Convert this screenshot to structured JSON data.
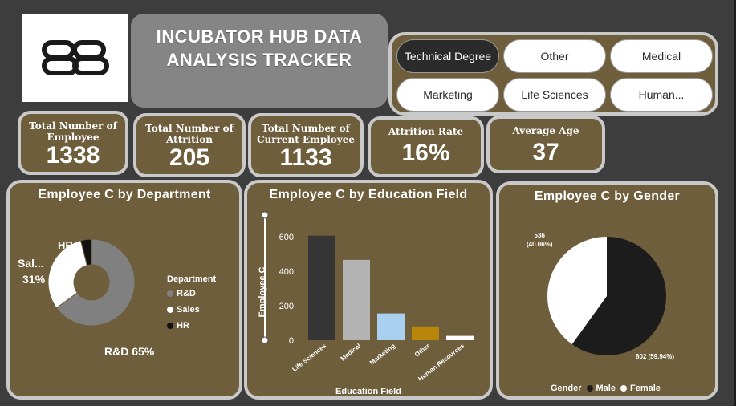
{
  "header": {
    "title_line1": "INCUBATOR HUB DATA",
    "title_line2": "ANALYSIS TRACKER",
    "logo_icon": "bb-logo-icon"
  },
  "slicer": {
    "options": [
      {
        "label": "Technical Degree",
        "selected": true
      },
      {
        "label": "Other",
        "selected": false
      },
      {
        "label": "Medical",
        "selected": false
      },
      {
        "label": "Marketing",
        "selected": false
      },
      {
        "label": "Life Sciences",
        "selected": false
      },
      {
        "label": "Human...",
        "selected": false
      }
    ]
  },
  "kpis": {
    "total_employee": {
      "label": "Total Number of Employee",
      "value": "1338"
    },
    "total_attrition": {
      "label": "Total Number of Attrition",
      "value": "205"
    },
    "current_employee": {
      "label": "Total Number of Current Employee",
      "value": "1133"
    },
    "attrition_rate": {
      "label": "Attrition Rate",
      "value": "16%"
    },
    "average_age": {
      "label": "Average Age",
      "value": "37"
    }
  },
  "colors": {
    "panel_bg": "#6e5e3c",
    "panel_border": "#c9c9c9",
    "rd": "#808080",
    "sales": "#ffffff",
    "hr": "#111111",
    "life_sciences": "#353535",
    "medical": "#b3b3b3",
    "marketing": "#a9d0ee",
    "other": "#b8860b",
    "human_resources": "#ffffff",
    "male": "#1c1c1c",
    "female": "#ffffff"
  },
  "chart_data": [
    {
      "type": "pie",
      "title": "Employee C by Department",
      "legend_title": "Department",
      "categories": [
        "R&D",
        "Sales",
        "HR"
      ],
      "values": [
        65,
        31,
        4
      ],
      "data_labels": [
        "R&D 65%",
        "Sal... 31%",
        "HR 4%"
      ],
      "donut": true
    },
    {
      "type": "bar",
      "title": "Employee C by Education Field",
      "xlabel": "Education Field",
      "ylabel": "Employee C",
      "categories": [
        "Life Sciences",
        "Medical",
        "Marketing",
        "Other",
        "Human Resources"
      ],
      "values": [
        605,
        465,
        155,
        80,
        25
      ],
      "ylim": [
        0,
        650
      ],
      "yticks": [
        0,
        200,
        400,
        600
      ]
    },
    {
      "type": "pie",
      "title": "Employee C by Gender",
      "legend_title": "Gender",
      "categories": [
        "Male",
        "Female"
      ],
      "values": [
        802,
        536
      ],
      "data_labels": [
        "802 (59.94%)",
        "536 (40.06%)"
      ]
    }
  ]
}
